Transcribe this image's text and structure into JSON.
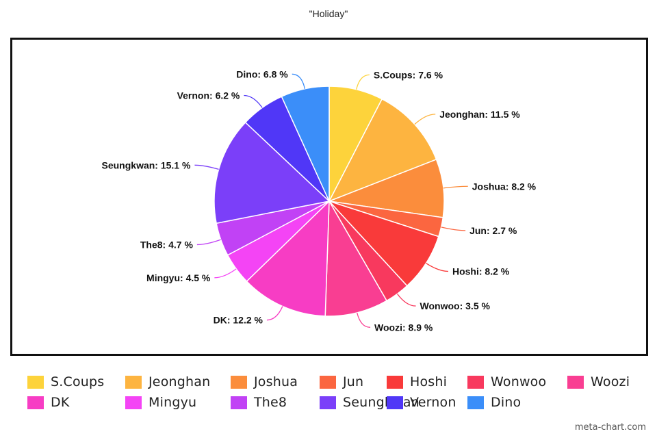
{
  "chart_data": {
    "type": "pie",
    "title": "\"Holiday\"",
    "slices": [
      {
        "name": "S.Coups",
        "value": 7.6,
        "label": "S.Coups: 7.6 %",
        "color": "#FDD33B"
      },
      {
        "name": "Jeonghan",
        "value": 11.5,
        "label": "Jeonghan: 11.5 %",
        "color": "#FDB440"
      },
      {
        "name": "Joshua",
        "value": 8.2,
        "label": "Joshua: 8.2 %",
        "color": "#FB8D3C"
      },
      {
        "name": "Jun",
        "value": 2.7,
        "label": "Jun: 2.7 %",
        "color": "#FB6640"
      },
      {
        "name": "Hoshi",
        "value": 8.2,
        "label": "Hoshi: 8.2 %",
        "color": "#F93A3A"
      },
      {
        "name": "Wonwoo",
        "value": 3.5,
        "label": "Wonwoo: 3.5 %",
        "color": "#F8395E"
      },
      {
        "name": "Woozi",
        "value": 8.9,
        "label": "Woozi: 8.9 %",
        "color": "#F93E92"
      },
      {
        "name": "DK",
        "value": 12.2,
        "label": "DK: 12.2 %",
        "color": "#F73DC4"
      },
      {
        "name": "Mingyu",
        "value": 4.5,
        "label": "Mingyu: 4.5 %",
        "color": "#F444F5"
      },
      {
        "name": "The8",
        "value": 4.7,
        "label": "The8: 4.7 %",
        "color": "#C142F5"
      },
      {
        "name": "Seungkwan",
        "value": 15.1,
        "label": "Seungkwan: 15.1 %",
        "color": "#7B3FF9"
      },
      {
        "name": "Vernon",
        "value": 6.2,
        "label": "Vernon: 6.2 %",
        "color": "#5037F7"
      },
      {
        "name": "Dino",
        "value": 6.8,
        "label": "Dino: 6.8 %",
        "color": "#3B8EF9"
      }
    ],
    "legend_position": "bottom"
  },
  "watermark": "meta-chart.com"
}
